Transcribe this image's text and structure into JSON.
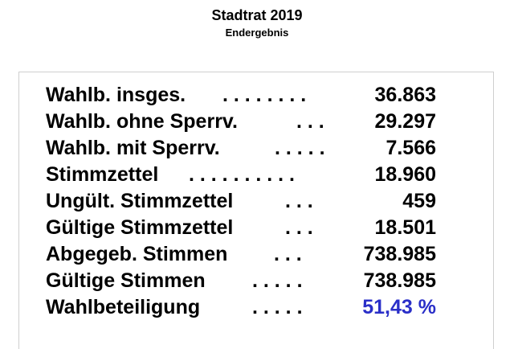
{
  "header": {
    "title": "Stadtrat 2019",
    "subtitle": "Endergebnis"
  },
  "stats": [
    {
      "label": "Wahlb. insges.",
      "dots": ". . . . . . . .",
      "value": "36.863"
    },
    {
      "label": "Wahlb. ohne Sperrv.",
      "dots": ". . .",
      "value": "29.297"
    },
    {
      "label": "Wahlb. mit Sperrv.",
      "dots": ". . . . .",
      "value": "7.566"
    },
    {
      "label": "Stimmzettel",
      "dots": ". . . . . . . . . .",
      "value": "18.960"
    },
    {
      "label": "Ungült. Stimmzettel",
      "dots": ". . .",
      "value": "459"
    },
    {
      "label": "Gültige Stimmzettel",
      "dots": ". . .",
      "value": "18.501"
    },
    {
      "label": "Abgegeb. Stimmen",
      "dots": ". . .",
      "value": "738.985"
    },
    {
      "label": "Gültige Stimmen",
      "dots": ". . . . .",
      "value": "738.985"
    },
    {
      "label": "Wahlbeteiligung",
      "dots": ". . . . .",
      "value": "51,43 %"
    }
  ],
  "colors": {
    "highlight_value": "#2a2fc8",
    "panel_border": "#cfcfcf"
  }
}
